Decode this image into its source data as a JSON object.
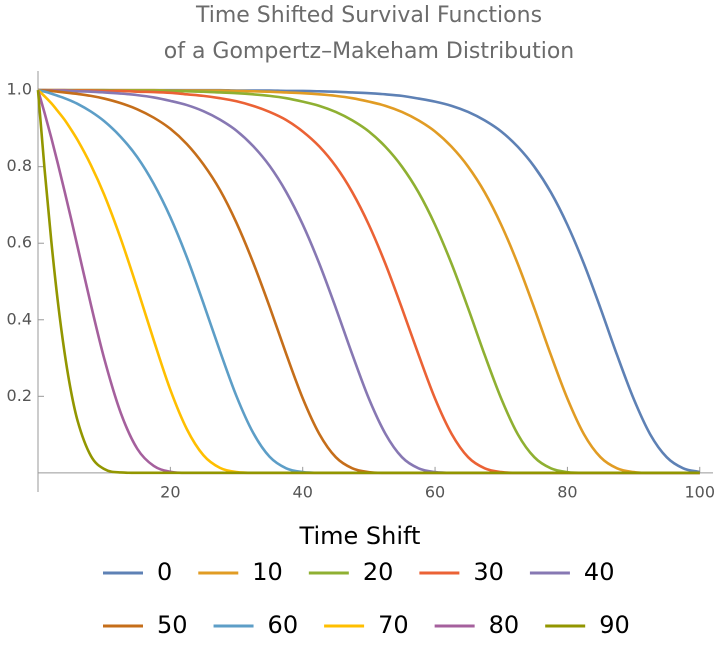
{
  "chart_data": {
    "type": "line",
    "title": [
      "Time Shifted Survival Functions",
      "of a Gompertz–Makeham Distribution"
    ],
    "legend_title": "Time Shift",
    "x": [
      0,
      1,
      2,
      3,
      4,
      5,
      6,
      8,
      10,
      12.5,
      15,
      17.5,
      20,
      22.5,
      25,
      27.5,
      30,
      32.5,
      35,
      37.5,
      40,
      42.5,
      45,
      47.5,
      50,
      52.5,
      55,
      57.5,
      60,
      62.5,
      65,
      67.5,
      70,
      72.5,
      75,
      77.5,
      80,
      82.5,
      85,
      87.5,
      90,
      92.5,
      95,
      97.5,
      100
    ],
    "series": [
      {
        "name": "0",
        "color": "#5e81b5",
        "values": [
          1,
          1,
          1,
          1,
          1,
          1,
          1,
          1,
          1,
          1,
          1,
          1,
          1,
          1,
          1,
          1,
          0.999,
          0.999,
          0.999,
          0.998,
          0.998,
          0.997,
          0.996,
          0.994,
          0.992,
          0.989,
          0.985,
          0.978,
          0.97,
          0.959,
          0.943,
          0.921,
          0.892,
          0.852,
          0.8,
          0.733,
          0.648,
          0.546,
          0.43,
          0.308,
          0.194,
          0.101,
          0.041,
          0.012,
          0.002
        ]
      },
      {
        "name": "10",
        "color": "#e19c24",
        "values": [
          1,
          1,
          1,
          1,
          1,
          1,
          1,
          1,
          1,
          1,
          1,
          1,
          0.999,
          0.999,
          0.999,
          0.999,
          0.998,
          0.997,
          0.996,
          0.994,
          0.992,
          0.989,
          0.985,
          0.979,
          0.97,
          0.959,
          0.943,
          0.921,
          0.892,
          0.852,
          0.8,
          0.733,
          0.648,
          0.546,
          0.43,
          0.308,
          0.194,
          0.101,
          0.041,
          0.012,
          0.002,
          0,
          0,
          0,
          0
        ]
      },
      {
        "name": "20",
        "color": "#8fb032",
        "values": [
          1,
          1,
          1,
          1,
          1,
          1,
          1,
          1,
          1,
          0.999,
          0.999,
          0.999,
          0.998,
          0.997,
          0.996,
          0.994,
          0.992,
          0.989,
          0.985,
          0.979,
          0.97,
          0.959,
          0.943,
          0.921,
          0.892,
          0.852,
          0.8,
          0.733,
          0.648,
          0.546,
          0.43,
          0.308,
          0.194,
          0.101,
          0.041,
          0.012,
          0.002,
          0,
          0,
          0,
          0,
          0,
          0,
          0,
          0
        ]
      },
      {
        "name": "30",
        "color": "#eb6235",
        "values": [
          1,
          1,
          1,
          1,
          1,
          0.999,
          0.999,
          0.999,
          0.998,
          0.998,
          0.996,
          0.995,
          0.993,
          0.989,
          0.985,
          0.979,
          0.971,
          0.959,
          0.943,
          0.922,
          0.892,
          0.853,
          0.801,
          0.733,
          0.648,
          0.546,
          0.43,
          0.309,
          0.194,
          0.102,
          0.041,
          0.012,
          0.002,
          0,
          0,
          0,
          0,
          0,
          0,
          0,
          0,
          0,
          0,
          0,
          0
        ]
      },
      {
        "name": "40",
        "color": "#8778b3",
        "values": [
          1,
          1,
          0.999,
          0.999,
          0.999,
          0.998,
          0.997,
          0.996,
          0.994,
          0.991,
          0.987,
          0.981,
          0.972,
          0.961,
          0.945,
          0.923,
          0.894,
          0.854,
          0.802,
          0.734,
          0.649,
          0.547,
          0.431,
          0.309,
          0.194,
          0.102,
          0.041,
          0.012,
          0.002,
          0,
          0,
          0,
          0,
          0,
          0,
          0,
          0,
          0,
          0,
          0,
          0,
          0,
          0,
          0,
          0
        ]
      },
      {
        "name": "50",
        "color": "#c56e1a",
        "values": [
          1,
          0.999,
          0.998,
          0.996,
          0.994,
          0.992,
          0.99,
          0.985,
          0.978,
          0.966,
          0.95,
          0.928,
          0.899,
          0.859,
          0.806,
          0.739,
          0.653,
          0.55,
          0.434,
          0.311,
          0.195,
          0.102,
          0.041,
          0.012,
          0.002,
          0,
          0,
          0,
          0,
          0,
          0,
          0,
          0,
          0,
          0,
          0,
          0,
          0,
          0,
          0,
          0,
          0,
          0,
          0,
          0
        ]
      },
      {
        "name": "60",
        "color": "#5d9ec7",
        "values": [
          1,
          0.996,
          0.991,
          0.985,
          0.979,
          0.972,
          0.964,
          0.944,
          0.919,
          0.878,
          0.825,
          0.755,
          0.668,
          0.563,
          0.443,
          0.318,
          0.2,
          0.105,
          0.042,
          0.012,
          0.002,
          0,
          0,
          0,
          0,
          0,
          0,
          0,
          0,
          0,
          0,
          0,
          0,
          0,
          0,
          0,
          0,
          0,
          0,
          0,
          0,
          0,
          0,
          0,
          0
        ]
      },
      {
        "name": "70",
        "color": "#ffbf00",
        "values": [
          1,
          0.984,
          0.966,
          0.945,
          0.923,
          0.897,
          0.869,
          0.804,
          0.727,
          0.612,
          0.482,
          0.346,
          0.217,
          0.114,
          0.046,
          0.013,
          0.002,
          0,
          0,
          0,
          0,
          0,
          0,
          0,
          0,
          0,
          0,
          0,
          0,
          0,
          0,
          0,
          0,
          0,
          0,
          0,
          0,
          0,
          0,
          0,
          0,
          0,
          0,
          0,
          0
        ]
      },
      {
        "name": "80",
        "color": "#a5609d",
        "values": [
          1,
          0.94,
          0.876,
          0.808,
          0.737,
          0.664,
          0.589,
          0.439,
          0.299,
          0.157,
          0.063,
          0.018,
          0.003,
          0,
          0,
          0,
          0,
          0,
          0,
          0,
          0,
          0,
          0,
          0,
          0,
          0,
          0,
          0,
          0,
          0,
          0,
          0,
          0,
          0,
          0,
          0,
          0,
          0,
          0,
          0,
          0,
          0,
          0,
          0,
          0
        ]
      },
      {
        "name": "90",
        "color": "#929600",
        "values": [
          1,
          0.792,
          0.607,
          0.447,
          0.316,
          0.212,
          0.135,
          0.044,
          0.01,
          0.001,
          0,
          0,
          0,
          0,
          0,
          0,
          0,
          0,
          0,
          0,
          0,
          0,
          0,
          0,
          0,
          0,
          0,
          0,
          0,
          0,
          0,
          0,
          0,
          0,
          0,
          0,
          0,
          0,
          0,
          0,
          0,
          0,
          0,
          0,
          0
        ]
      }
    ],
    "xlim": [
      0,
      102
    ],
    "ylim": [
      -0.05,
      1.05
    ],
    "xticks": [
      20,
      40,
      60,
      80,
      100
    ],
    "yticks": [
      0.2,
      0.4,
      0.6,
      0.8,
      {
        "value": 1,
        "label": "1.0"
      }
    ]
  }
}
